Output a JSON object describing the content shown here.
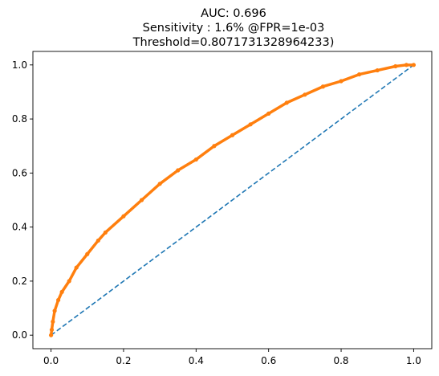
{
  "chart_data": {
    "type": "line",
    "title_lines": [
      "AUC: 0.696",
      "Sensitivity : 1.6% @FPR=1e-03",
      "Threshold=0.8071731328964233)"
    ],
    "xlabel": "",
    "ylabel": "",
    "xlim": [
      -0.05,
      1.05
    ],
    "ylim": [
      -0.05,
      1.05
    ],
    "grid": false,
    "xticks": [
      0.0,
      0.2,
      0.4,
      0.6,
      0.8,
      1.0
    ],
    "xtick_labels": [
      "0.0",
      "0.2",
      "0.4",
      "0.6",
      "0.8",
      "1.0"
    ],
    "yticks": [
      0.0,
      0.2,
      0.4,
      0.6,
      0.8,
      1.0
    ],
    "ytick_labels": [
      "0.0",
      "0.2",
      "0.4",
      "0.6",
      "0.8",
      "1.0"
    ],
    "series": [
      {
        "style": "dashed",
        "color": "#1f77b4",
        "x": [
          0.0,
          1.0
        ],
        "y": [
          0.0,
          1.0
        ]
      },
      {
        "style": "solid-with-markers",
        "color": "#ff7f0e",
        "x": [
          0.0,
          0.002,
          0.005,
          0.01,
          0.02,
          0.03,
          0.05,
          0.07,
          0.1,
          0.13,
          0.15,
          0.2,
          0.25,
          0.3,
          0.35,
          0.4,
          0.45,
          0.5,
          0.55,
          0.6,
          0.65,
          0.7,
          0.75,
          0.8,
          0.85,
          0.9,
          0.95,
          0.98,
          1.0
        ],
        "y": [
          0.0,
          0.02,
          0.05,
          0.09,
          0.13,
          0.16,
          0.2,
          0.25,
          0.3,
          0.35,
          0.38,
          0.44,
          0.5,
          0.56,
          0.61,
          0.65,
          0.7,
          0.74,
          0.78,
          0.82,
          0.86,
          0.89,
          0.92,
          0.94,
          0.965,
          0.98,
          0.995,
          1.0,
          1.0
        ]
      }
    ]
  }
}
